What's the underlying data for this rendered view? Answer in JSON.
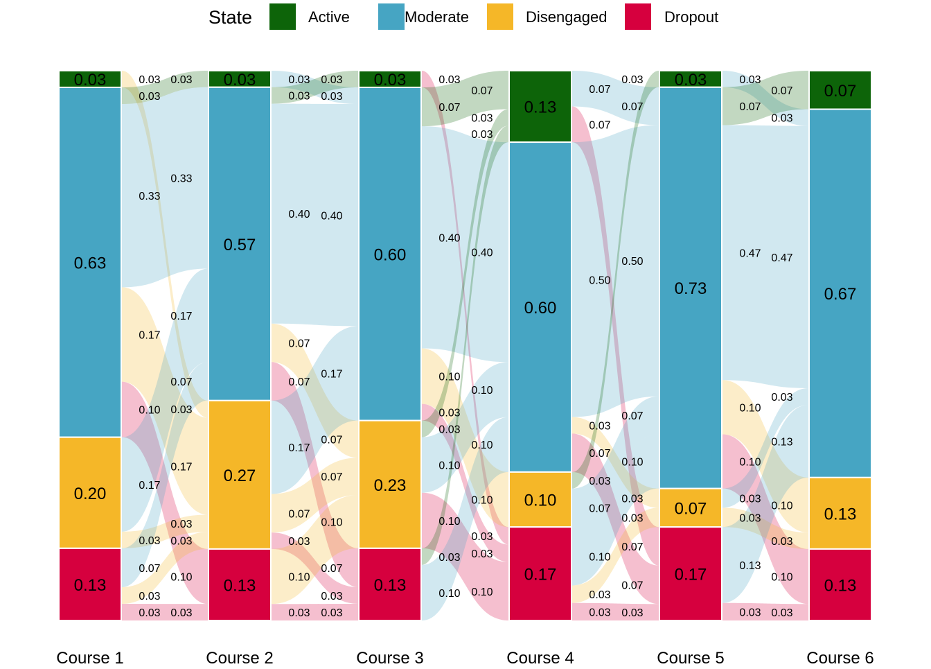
{
  "chart_data": {
    "type": "alluvial",
    "legend": {
      "title": "State",
      "placement": "top",
      "items": [
        {
          "state": "Active",
          "color": "#0D6409"
        },
        {
          "state": "Moderate",
          "color": "#46A5C3"
        },
        {
          "state": "Disengaged",
          "color": "#F5B728"
        },
        {
          "state": "Dropout",
          "color": "#D6003E"
        }
      ]
    },
    "state_order": [
      "Active",
      "Moderate",
      "Disengaged",
      "Dropout"
    ],
    "columns": [
      {
        "label": "Course 1",
        "states": {
          "Active": 0.03,
          "Moderate": 0.63,
          "Disengaged": 0.2,
          "Dropout": 0.13
        }
      },
      {
        "label": "Course 2",
        "states": {
          "Active": 0.03,
          "Moderate": 0.57,
          "Disengaged": 0.27,
          "Dropout": 0.13
        }
      },
      {
        "label": "Course 3",
        "states": {
          "Active": 0.03,
          "Moderate": 0.6,
          "Disengaged": 0.23,
          "Dropout": 0.13
        }
      },
      {
        "label": "Course 4",
        "states": {
          "Active": 0.13,
          "Moderate": 0.6,
          "Disengaged": 0.1,
          "Dropout": 0.17
        }
      },
      {
        "label": "Course 5",
        "states": {
          "Active": 0.03,
          "Moderate": 0.73,
          "Disengaged": 0.07,
          "Dropout": 0.17
        }
      },
      {
        "label": "Course 6",
        "states": {
          "Active": 0.07,
          "Moderate": 0.67,
          "Disengaged": 0.13,
          "Dropout": 0.13
        }
      }
    ],
    "transitions": [
      {
        "from": "Course 1",
        "to": "Course 2",
        "flows": [
          {
            "from": "Active",
            "to": "Disengaged",
            "value": 0.03
          },
          {
            "from": "Moderate",
            "to": "Active",
            "value": 0.03
          },
          {
            "from": "Moderate",
            "to": "Moderate",
            "value": 0.33
          },
          {
            "from": "Moderate",
            "to": "Disengaged",
            "value": 0.17
          },
          {
            "from": "Moderate",
            "to": "Dropout",
            "value": 0.1
          },
          {
            "from": "Disengaged",
            "to": "Moderate",
            "value": 0.17
          },
          {
            "from": "Disengaged",
            "to": "Disengaged",
            "value": 0.03
          },
          {
            "from": "Dropout",
            "to": "Moderate",
            "value": 0.07
          },
          {
            "from": "Dropout",
            "to": "Disengaged",
            "value": 0.03
          },
          {
            "from": "Dropout",
            "to": "Dropout",
            "value": 0.03
          }
        ]
      },
      {
        "from": "Course 2",
        "to": "Course 3",
        "flows": [
          {
            "from": "Active",
            "to": "Moderate",
            "value": 0.03
          },
          {
            "from": "Moderate",
            "to": "Active",
            "value": 0.03
          },
          {
            "from": "Moderate",
            "to": "Moderate",
            "value": 0.4
          },
          {
            "from": "Moderate",
            "to": "Disengaged",
            "value": 0.07
          },
          {
            "from": "Moderate",
            "to": "Dropout",
            "value": 0.07
          },
          {
            "from": "Disengaged",
            "to": "Moderate",
            "value": 0.17
          },
          {
            "from": "Disengaged",
            "to": "Disengaged",
            "value": 0.07
          },
          {
            "from": "Disengaged",
            "to": "Dropout",
            "value": 0.03
          },
          {
            "from": "Dropout",
            "to": "Disengaged",
            "value": 0.1
          },
          {
            "from": "Dropout",
            "to": "Dropout",
            "value": 0.03
          }
        ]
      },
      {
        "from": "Course 3",
        "to": "Course 4",
        "flows": [
          {
            "from": "Active",
            "to": "Dropout",
            "value": 0.03
          },
          {
            "from": "Moderate",
            "to": "Active",
            "value": 0.07
          },
          {
            "from": "Moderate",
            "to": "Moderate",
            "value": 0.4
          },
          {
            "from": "Moderate",
            "to": "Disengaged",
            "value": 0.1
          },
          {
            "from": "Moderate",
            "to": "Dropout",
            "value": 0.03
          },
          {
            "from": "Disengaged",
            "to": "Active",
            "value": 0.03
          },
          {
            "from": "Disengaged",
            "to": "Moderate",
            "value": 0.1
          },
          {
            "from": "Disengaged",
            "to": "Dropout",
            "value": 0.1
          },
          {
            "from": "Dropout",
            "to": "Active",
            "value": 0.03
          },
          {
            "from": "Dropout",
            "to": "Moderate",
            "value": 0.1
          }
        ]
      },
      {
        "from": "Course 4",
        "to": "Course 5",
        "flows": [
          {
            "from": "Active",
            "to": "Moderate",
            "value": 0.07
          },
          {
            "from": "Active",
            "to": "Dropout",
            "value": 0.07
          },
          {
            "from": "Moderate",
            "to": "Moderate",
            "value": 0.5
          },
          {
            "from": "Moderate",
            "to": "Disengaged",
            "value": 0.03
          },
          {
            "from": "Moderate",
            "to": "Dropout",
            "value": 0.07
          },
          {
            "from": "Disengaged",
            "to": "Active",
            "value": 0.03
          },
          {
            "from": "Disengaged",
            "to": "Moderate",
            "value": 0.07
          },
          {
            "from": "Dropout",
            "to": "Moderate",
            "value": 0.1
          },
          {
            "from": "Dropout",
            "to": "Disengaged",
            "value": 0.03
          },
          {
            "from": "Dropout",
            "to": "Dropout",
            "value": 0.03
          }
        ]
      },
      {
        "from": "Course 5",
        "to": "Course 6",
        "flows": [
          {
            "from": "Active",
            "to": "Moderate",
            "value": 0.03
          },
          {
            "from": "Moderate",
            "to": "Active",
            "value": 0.07
          },
          {
            "from": "Moderate",
            "to": "Moderate",
            "value": 0.47
          },
          {
            "from": "Moderate",
            "to": "Disengaged",
            "value": 0.1
          },
          {
            "from": "Moderate",
            "to": "Dropout",
            "value": 0.1
          },
          {
            "from": "Disengaged",
            "to": "Moderate",
            "value": 0.03
          },
          {
            "from": "Disengaged",
            "to": "Disengaged",
            "value": 0.03
          },
          {
            "from": "Dropout",
            "to": "Moderate",
            "value": 0.13
          },
          {
            "from": "Dropout",
            "to": "Dropout",
            "value": 0.03
          }
        ]
      }
    ]
  }
}
